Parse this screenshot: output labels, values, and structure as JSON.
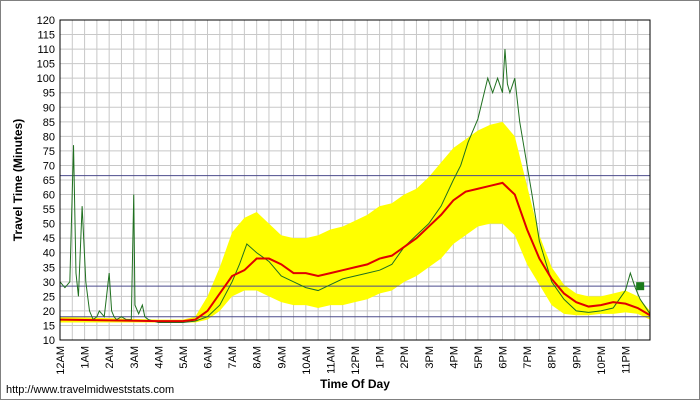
{
  "source_url": "http://www.travelmidweststats.com",
  "colors": {
    "band": "#ffff00",
    "average": "#e00000",
    "today": "#207020",
    "reference": "#4b4b8c",
    "grid": "#c8c8c8",
    "marker": "#1a7a1a"
  },
  "chart_data": {
    "type": "line",
    "xlabel": "Time Of Day",
    "ylabel": "Travel Time (Minutes)",
    "xlim": [
      0,
      24
    ],
    "ylim": [
      10,
      120
    ],
    "y_ticks": [
      10,
      15,
      20,
      25,
      30,
      35,
      40,
      45,
      50,
      55,
      60,
      65,
      70,
      75,
      80,
      85,
      90,
      95,
      100,
      105,
      110,
      115,
      120
    ],
    "x_tick_labels": [
      "12AM",
      "1AM",
      "2AM",
      "3AM",
      "4AM",
      "5AM",
      "6AM",
      "7AM",
      "8AM",
      "9AM",
      "10AM",
      "11AM",
      "12PM",
      "1PM",
      "2PM",
      "3PM",
      "4PM",
      "5PM",
      "6PM",
      "7PM",
      "8PM",
      "9PM",
      "10PM",
      "11PM"
    ],
    "grid": true,
    "reference_lines": [
      66.5,
      28.5,
      18
    ],
    "series": [
      {
        "kind": "band",
        "x": [
          0,
          4,
          5,
          5.5,
          6,
          6.5,
          7,
          7.5,
          8,
          8.5,
          9,
          9.5,
          10,
          10.5,
          11,
          11.5,
          12,
          12.5,
          13,
          13.5,
          14,
          14.5,
          15,
          15.5,
          16,
          16.5,
          17,
          17.5,
          18,
          18.5,
          19,
          19.5,
          20,
          20.5,
          21,
          21.5,
          22,
          22.5,
          23,
          23.5,
          24
        ],
        "upper": [
          18,
          17,
          17,
          18,
          25,
          35,
          47,
          52,
          54,
          50,
          46,
          45,
          45,
          46,
          48,
          49,
          51,
          53,
          56,
          57,
          60,
          62,
          66,
          71,
          76,
          79,
          82,
          84,
          85,
          80,
          63,
          46,
          35,
          29,
          26,
          25,
          25,
          26,
          27,
          25,
          20
        ],
        "lower": [
          16,
          16,
          16,
          16,
          17,
          20,
          25,
          27,
          27,
          25,
          23,
          22,
          22,
          21,
          22,
          22,
          23,
          24,
          26,
          27,
          30,
          32,
          35,
          38,
          43,
          46,
          49,
          50,
          50,
          46,
          36,
          29,
          22,
          19,
          18.5,
          18.5,
          19,
          19,
          19.5,
          19,
          17
        ]
      },
      {
        "kind": "average",
        "x": [
          0,
          4,
          5,
          5.5,
          6,
          6.5,
          7,
          7.5,
          8,
          8.5,
          9,
          9.5,
          10,
          10.5,
          11,
          11.5,
          12,
          12.5,
          13,
          13.5,
          14,
          14.5,
          15,
          15.5,
          16,
          16.5,
          17,
          17.5,
          18,
          18.5,
          19,
          19.5,
          20,
          20.5,
          21,
          21.5,
          22,
          22.5,
          23,
          23.5,
          24
        ],
        "values": [
          17,
          16.5,
          16.5,
          17,
          20,
          26,
          32,
          34,
          38,
          38,
          36,
          33,
          33,
          32,
          33,
          34,
          35,
          36,
          38,
          39,
          42,
          45,
          49,
          53,
          58,
          61,
          62,
          63,
          64,
          60,
          48,
          38,
          31,
          26,
          23,
          21.5,
          22,
          23,
          22.5,
          21,
          18.5
        ]
      },
      {
        "kind": "today",
        "x": [
          0,
          0.2,
          0.4,
          0.55,
          0.65,
          0.75,
          0.9,
          1.05,
          1.2,
          1.35,
          1.5,
          1.6,
          1.8,
          2.0,
          2.1,
          2.2,
          2.3,
          2.5,
          2.7,
          2.9,
          3.0,
          3.05,
          3.2,
          3.35,
          3.45,
          3.6,
          4.0,
          4.5,
          5.0,
          5.5,
          6.0,
          6.5,
          7.0,
          7.3,
          7.6,
          8.0,
          8.5,
          9.0,
          9.5,
          10.0,
          10.5,
          11.0,
          11.5,
          12.0,
          12.5,
          13.0,
          13.5,
          14.0,
          14.5,
          15.0,
          15.5,
          16.0,
          16.3,
          16.6,
          17.0,
          17.2,
          17.4,
          17.6,
          17.8,
          18.0,
          18.1,
          18.2,
          18.3,
          18.5,
          18.7,
          18.9,
          19.2,
          19.5,
          20.0,
          20.5,
          21.0,
          21.5,
          22.0,
          22.5,
          23.0,
          23.2,
          23.4,
          23.6,
          24.0
        ],
        "values": [
          30,
          28,
          30,
          77,
          33,
          25,
          56,
          30,
          20,
          17,
          18,
          20,
          18,
          33,
          20,
          18,
          17,
          18,
          17,
          17,
          60,
          22,
          19,
          22,
          18,
          17,
          16,
          16,
          16,
          16.5,
          18,
          22,
          30,
          36,
          43,
          40,
          37,
          32,
          30,
          28,
          27,
          29,
          31,
          32,
          33,
          34,
          36,
          42,
          46,
          50,
          56,
          65,
          70,
          78,
          86,
          93,
          100,
          95,
          100,
          95,
          110,
          98,
          95,
          100,
          85,
          75,
          60,
          44,
          30,
          24,
          20,
          19.5,
          20,
          21,
          27,
          33,
          28,
          24,
          19
        ]
      }
    ],
    "marker": {
      "x": 23.6,
      "y": 28.5
    }
  }
}
